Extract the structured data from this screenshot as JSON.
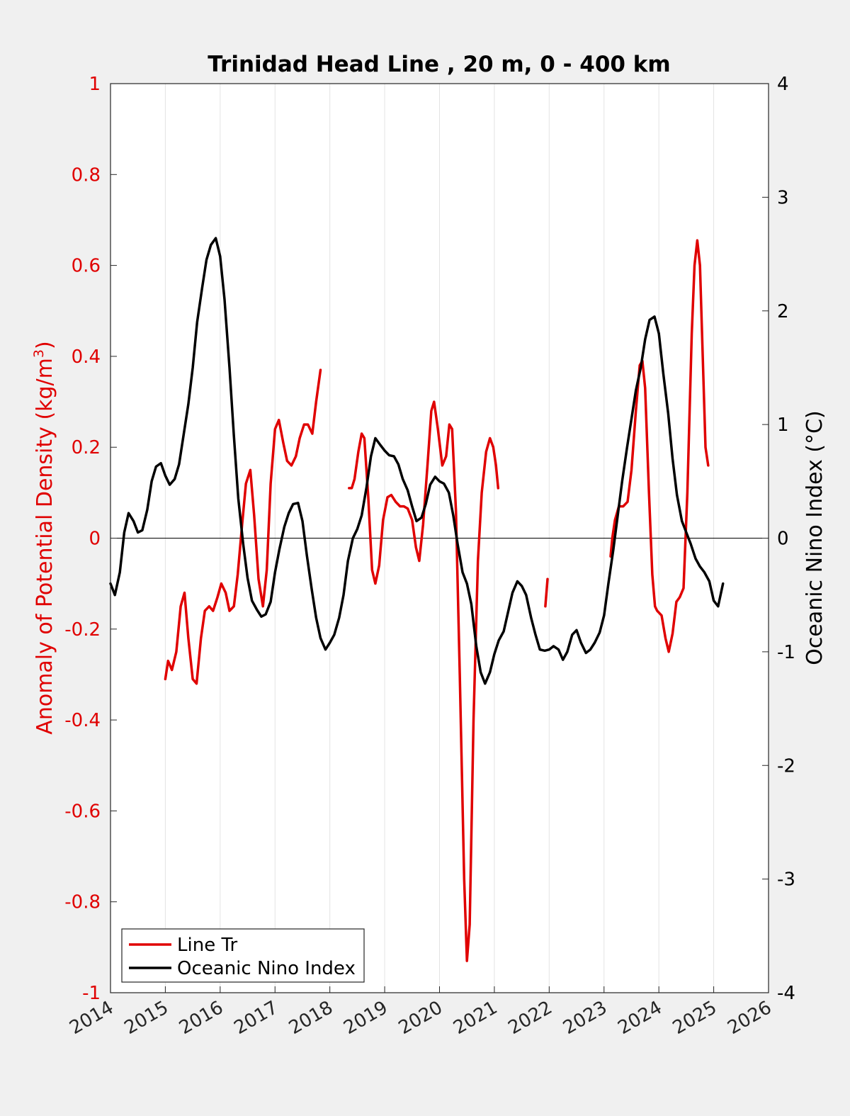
{
  "chart_data": {
    "type": "line",
    "title": "Trinidad Head Line , 20 m, 0 - 400 km",
    "xlabel": "",
    "ylabel_left": "Anomaly of Potential Density (kg/m",
    "ylabel_left_sup": "3",
    "ylabel_left_close": ")",
    "ylabel_right": "Oceanic Nino Index (°C)",
    "xlim": [
      2014,
      2026
    ],
    "ylim_left": [
      -1,
      1
    ],
    "ylim_right": [
      -4,
      4
    ],
    "x_ticks": [
      "2014",
      "2015",
      "2016",
      "2017",
      "2018",
      "2019",
      "2020",
      "2021",
      "2022",
      "2023",
      "2024",
      "2025",
      "2026"
    ],
    "y_left_ticks": [
      "1",
      "0.8",
      "0.6",
      "0.4",
      "0.2",
      "0",
      "-0.2",
      "-0.4",
      "-0.6",
      "-0.8",
      "-1"
    ],
    "y_right_ticks": [
      "4",
      "3",
      "2",
      "1",
      "0",
      "-1",
      "-2",
      "-3",
      "-4"
    ],
    "grid": "vertical",
    "legend_position": "bottom-left",
    "colors": {
      "line_tr": "#e00000",
      "oni": "#000000",
      "left_axis": "#e00000",
      "right_axis": "#000000"
    },
    "series": [
      {
        "name": "Line Tr",
        "axis": "left",
        "segments": [
          [
            [
              2015.0,
              -0.31
            ],
            [
              2015.05,
              -0.27
            ],
            [
              2015.12,
              -0.29
            ],
            [
              2015.2,
              -0.25
            ],
            [
              2015.28,
              -0.15
            ],
            [
              2015.35,
              -0.12
            ],
            [
              2015.42,
              -0.22
            ],
            [
              2015.5,
              -0.31
            ],
            [
              2015.57,
              -0.32
            ],
            [
              2015.65,
              -0.22
            ],
            [
              2015.72,
              -0.16
            ],
            [
              2015.8,
              -0.15
            ],
            [
              2015.87,
              -0.16
            ],
            [
              2015.95,
              -0.13
            ],
            [
              2016.02,
              -0.1
            ],
            [
              2016.1,
              -0.12
            ],
            [
              2016.17,
              -0.16
            ],
            [
              2016.25,
              -0.15
            ],
            [
              2016.32,
              -0.08
            ],
            [
              2016.4,
              0.03
            ],
            [
              2016.47,
              0.12
            ],
            [
              2016.55,
              0.15
            ],
            [
              2016.62,
              0.05
            ],
            [
              2016.7,
              -0.09
            ],
            [
              2016.78,
              -0.15
            ],
            [
              2016.85,
              -0.07
            ],
            [
              2016.92,
              0.12
            ],
            [
              2017.0,
              0.24
            ],
            [
              2017.07,
              0.26
            ],
            [
              2017.15,
              0.21
            ],
            [
              2017.22,
              0.17
            ],
            [
              2017.3,
              0.16
            ],
            [
              2017.38,
              0.18
            ],
            [
              2017.45,
              0.22
            ],
            [
              2017.53,
              0.25
            ],
            [
              2017.6,
              0.25
            ],
            [
              2017.68,
              0.23
            ],
            [
              2017.75,
              0.3
            ],
            [
              2017.83,
              0.37
            ]
          ],
          [
            [
              2018.35,
              0.11
            ],
            [
              2018.4,
              0.11
            ],
            [
              2018.45,
              0.13
            ],
            [
              2018.52,
              0.19
            ],
            [
              2018.58,
              0.23
            ],
            [
              2018.63,
              0.22
            ],
            [
              2018.7,
              0.09
            ],
            [
              2018.77,
              -0.07
            ],
            [
              2018.83,
              -0.1
            ],
            [
              2018.9,
              -0.06
            ],
            [
              2018.97,
              0.04
            ],
            [
              2019.05,
              0.09
            ],
            [
              2019.12,
              0.095
            ],
            [
              2019.2,
              0.08
            ],
            [
              2019.28,
              0.07
            ],
            [
              2019.35,
              0.07
            ],
            [
              2019.42,
              0.065
            ],
            [
              2019.5,
              0.04
            ],
            [
              2019.57,
              -0.02
            ],
            [
              2019.63,
              -0.05
            ],
            [
              2019.7,
              0.03
            ],
            [
              2019.78,
              0.16
            ],
            [
              2019.85,
              0.28
            ],
            [
              2019.9,
              0.3
            ],
            [
              2019.97,
              0.24
            ],
            [
              2020.05,
              0.16
            ],
            [
              2020.12,
              0.18
            ],
            [
              2020.18,
              0.25
            ],
            [
              2020.23,
              0.24
            ],
            [
              2020.3,
              0.06
            ],
            [
              2020.37,
              -0.3
            ],
            [
              2020.45,
              -0.75
            ],
            [
              2020.5,
              -0.93
            ],
            [
              2020.55,
              -0.85
            ],
            [
              2020.62,
              -0.4
            ],
            [
              2020.7,
              -0.05
            ],
            [
              2020.77,
              0.1
            ],
            [
              2020.85,
              0.19
            ],
            [
              2020.92,
              0.22
            ],
            [
              2020.98,
              0.2
            ],
            [
              2021.03,
              0.16
            ],
            [
              2021.07,
              0.11
            ]
          ],
          [
            [
              2021.93,
              -0.15
            ],
            [
              2021.97,
              -0.09
            ]
          ],
          [
            [
              2023.12,
              -0.04
            ],
            [
              2023.15,
              0.0
            ],
            [
              2023.2,
              0.04
            ],
            [
              2023.27,
              0.07
            ],
            [
              2023.35,
              0.07
            ],
            [
              2023.43,
              0.08
            ],
            [
              2023.5,
              0.15
            ],
            [
              2023.58,
              0.28
            ],
            [
              2023.65,
              0.38
            ],
            [
              2023.7,
              0.39
            ],
            [
              2023.75,
              0.33
            ],
            [
              2023.82,
              0.1
            ],
            [
              2023.88,
              -0.08
            ],
            [
              2023.93,
              -0.15
            ],
            [
              2023.97,
              -0.16
            ],
            [
              2024.05,
              -0.17
            ],
            [
              2024.12,
              -0.22
            ],
            [
              2024.18,
              -0.25
            ],
            [
              2024.25,
              -0.21
            ],
            [
              2024.32,
              -0.14
            ],
            [
              2024.38,
              -0.13
            ],
            [
              2024.45,
              -0.11
            ],
            [
              2024.52,
              0.1
            ],
            [
              2024.6,
              0.45
            ],
            [
              2024.65,
              0.6
            ],
            [
              2024.7,
              0.655
            ],
            [
              2024.75,
              0.6
            ],
            [
              2024.8,
              0.4
            ],
            [
              2024.85,
              0.2
            ],
            [
              2024.9,
              0.16
            ]
          ]
        ]
      },
      {
        "name": "Oceanic Nino Index",
        "axis": "right",
        "segments": [
          [
            [
              2014.0,
              -0.4
            ],
            [
              2014.08,
              -0.5
            ],
            [
              2014.17,
              -0.3
            ],
            [
              2014.25,
              0.05
            ],
            [
              2014.33,
              0.22
            ],
            [
              2014.42,
              0.15
            ],
            [
              2014.5,
              0.05
            ],
            [
              2014.58,
              0.07
            ],
            [
              2014.67,
              0.25
            ],
            [
              2014.75,
              0.5
            ],
            [
              2014.83,
              0.63
            ],
            [
              2014.92,
              0.66
            ],
            [
              2015.0,
              0.55
            ],
            [
              2015.08,
              0.47
            ],
            [
              2015.17,
              0.52
            ],
            [
              2015.25,
              0.65
            ],
            [
              2015.33,
              0.9
            ],
            [
              2015.42,
              1.18
            ],
            [
              2015.5,
              1.5
            ],
            [
              2015.58,
              1.9
            ],
            [
              2015.67,
              2.2
            ],
            [
              2015.75,
              2.45
            ],
            [
              2015.83,
              2.58
            ],
            [
              2015.92,
              2.64
            ],
            [
              2016.0,
              2.48
            ],
            [
              2016.08,
              2.1
            ],
            [
              2016.17,
              1.5
            ],
            [
              2016.25,
              0.9
            ],
            [
              2016.33,
              0.35
            ],
            [
              2016.42,
              -0.05
            ],
            [
              2016.5,
              -0.35
            ],
            [
              2016.58,
              -0.55
            ],
            [
              2016.67,
              -0.63
            ],
            [
              2016.75,
              -0.69
            ],
            [
              2016.83,
              -0.67
            ],
            [
              2016.92,
              -0.56
            ],
            [
              2017.0,
              -0.3
            ],
            [
              2017.08,
              -0.1
            ],
            [
              2017.17,
              0.1
            ],
            [
              2017.25,
              0.22
            ],
            [
              2017.33,
              0.3
            ],
            [
              2017.42,
              0.31
            ],
            [
              2017.5,
              0.15
            ],
            [
              2017.58,
              -0.15
            ],
            [
              2017.67,
              -0.45
            ],
            [
              2017.75,
              -0.7
            ],
            [
              2017.83,
              -0.88
            ],
            [
              2017.92,
              -0.98
            ],
            [
              2018.0,
              -0.92
            ],
            [
              2018.08,
              -0.85
            ],
            [
              2018.17,
              -0.7
            ],
            [
              2018.25,
              -0.5
            ],
            [
              2018.33,
              -0.2
            ],
            [
              2018.42,
              0.0
            ],
            [
              2018.5,
              0.08
            ],
            [
              2018.58,
              0.2
            ],
            [
              2018.67,
              0.45
            ],
            [
              2018.75,
              0.72
            ],
            [
              2018.83,
              0.88
            ],
            [
              2018.92,
              0.82
            ],
            [
              2019.0,
              0.77
            ],
            [
              2019.08,
              0.73
            ],
            [
              2019.17,
              0.72
            ],
            [
              2019.25,
              0.65
            ],
            [
              2019.33,
              0.52
            ],
            [
              2019.42,
              0.42
            ],
            [
              2019.5,
              0.28
            ],
            [
              2019.58,
              0.15
            ],
            [
              2019.67,
              0.18
            ],
            [
              2019.75,
              0.3
            ],
            [
              2019.83,
              0.47
            ],
            [
              2019.92,
              0.54
            ],
            [
              2020.0,
              0.5
            ],
            [
              2020.08,
              0.48
            ],
            [
              2020.17,
              0.4
            ],
            [
              2020.25,
              0.2
            ],
            [
              2020.33,
              -0.05
            ],
            [
              2020.42,
              -0.3
            ],
            [
              2020.5,
              -0.4
            ],
            [
              2020.58,
              -0.58
            ],
            [
              2020.67,
              -0.95
            ],
            [
              2020.75,
              -1.18
            ],
            [
              2020.83,
              -1.28
            ],
            [
              2020.92,
              -1.18
            ],
            [
              2021.0,
              -1.02
            ],
            [
              2021.08,
              -0.9
            ],
            [
              2021.17,
              -0.82
            ],
            [
              2021.25,
              -0.65
            ],
            [
              2021.33,
              -0.48
            ],
            [
              2021.42,
              -0.38
            ],
            [
              2021.5,
              -0.42
            ],
            [
              2021.58,
              -0.5
            ],
            [
              2021.67,
              -0.7
            ],
            [
              2021.75,
              -0.85
            ],
            [
              2021.83,
              -0.98
            ],
            [
              2021.92,
              -0.99
            ],
            [
              2022.0,
              -0.98
            ],
            [
              2022.08,
              -0.95
            ],
            [
              2022.17,
              -0.98
            ],
            [
              2022.25,
              -1.07
            ],
            [
              2022.33,
              -1.0
            ],
            [
              2022.42,
              -0.85
            ],
            [
              2022.5,
              -0.81
            ],
            [
              2022.58,
              -0.92
            ],
            [
              2022.67,
              -1.01
            ],
            [
              2022.75,
              -0.98
            ],
            [
              2022.83,
              -0.92
            ],
            [
              2022.92,
              -0.83
            ],
            [
              2023.0,
              -0.68
            ],
            [
              2023.08,
              -0.4
            ],
            [
              2023.17,
              -0.1
            ],
            [
              2023.25,
              0.2
            ],
            [
              2023.33,
              0.5
            ],
            [
              2023.42,
              0.8
            ],
            [
              2023.5,
              1.05
            ],
            [
              2023.58,
              1.3
            ],
            [
              2023.67,
              1.5
            ],
            [
              2023.75,
              1.75
            ],
            [
              2023.83,
              1.92
            ],
            [
              2023.92,
              1.95
            ],
            [
              2024.0,
              1.8
            ],
            [
              2024.08,
              1.45
            ],
            [
              2024.17,
              1.1
            ],
            [
              2024.25,
              0.7
            ],
            [
              2024.33,
              0.38
            ],
            [
              2024.42,
              0.15
            ],
            [
              2024.5,
              0.05
            ],
            [
              2024.58,
              -0.05
            ],
            [
              2024.67,
              -0.18
            ],
            [
              2024.75,
              -0.25
            ],
            [
              2024.83,
              -0.3
            ],
            [
              2024.92,
              -0.38
            ],
            [
              2025.0,
              -0.55
            ],
            [
              2025.08,
              -0.6
            ],
            [
              2025.17,
              -0.4
            ]
          ]
        ]
      }
    ]
  }
}
